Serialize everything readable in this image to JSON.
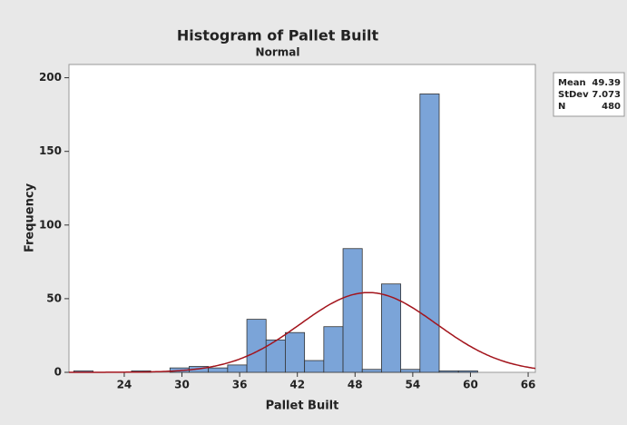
{
  "chart_data": {
    "type": "histogram",
    "title": "Histogram of Pallet Built",
    "subtitle": "Normal",
    "x_label": "Pallet Built",
    "y_label": "Frequency",
    "bins": [
      18.75,
      20.75,
      22.75,
      24.75,
      26.75,
      28.75,
      30.75,
      32.75,
      34.75,
      36.75,
      38.75,
      40.75,
      42.75,
      44.75,
      46.75,
      48.75,
      50.75,
      52.75,
      54.75,
      56.75,
      58.75,
      60.75
    ],
    "values": [
      1,
      0,
      0,
      1,
      0,
      3,
      4,
      3,
      5,
      36,
      22,
      27,
      8,
      31,
      84,
      2,
      60,
      2,
      189,
      1,
      1
    ],
    "color": "#7ba4d8",
    "fit_color": "#a3141c",
    "xlim": [
      18.25,
      66.75
    ],
    "xticks": [
      24,
      30,
      36,
      42,
      48,
      54,
      60,
      66
    ],
    "ylim": [
      0,
      209
    ],
    "yticks": [
      0,
      50,
      100,
      150,
      200
    ],
    "stats": [
      {
        "name": "Mean",
        "value": 49.39
      },
      {
        "name": "StDev",
        "value": 7.073
      },
      {
        "name": "N",
        "value": 480
      }
    ]
  }
}
